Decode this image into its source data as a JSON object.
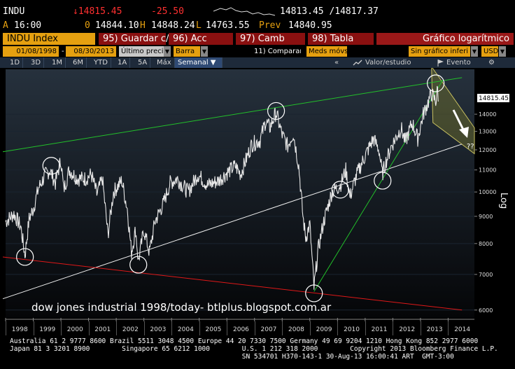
{
  "quote": {
    "ticker": "INDU",
    "last": "↓14815.45",
    "change": "-25.50",
    "bid_ask": "14813.45 /14817.37",
    "time_label": "A",
    "time": "16:00",
    "open_label": "0",
    "open": "14844.10",
    "high_label": "H",
    "high": "14848.24",
    "low_label": "L",
    "low": "14763.55",
    "prev_label": "Prev",
    "prev": "14840.95"
  },
  "function_bar": {
    "ticker_field": "INDU Index",
    "buttons": [
      "95) Guardar c/",
      "96) Acc",
      "97) Camb",
      "98) Tabla"
    ],
    "title": "Gráfico logarítmico"
  },
  "control_bar": {
    "start_date": "01/08/1998",
    "end_date": "08/30/2013",
    "price_field": "Último preci",
    "chart_type": "Barra",
    "compare": "11) Comparar",
    "moving_avg": "Meds móvs",
    "event_field": "Sin gráfico inferi",
    "currency": "USD"
  },
  "period_tabs": {
    "tabs": [
      "1D",
      "3D",
      "1M",
      "6M",
      "YTD",
      "1A",
      "5A",
      "Máx"
    ],
    "active": "Semanal ▼",
    "collapse": "«",
    "value_study": "Valor/estudio",
    "event": "Evento",
    "settings": "⚙"
  },
  "chart_data": {
    "type": "line",
    "title": "",
    "xlabel": "",
    "ylabel": "Log",
    "scale": "log",
    "x_ticks": [
      "1998",
      "1999",
      "2000",
      "2001",
      "2002",
      "2003",
      "2004",
      "2005",
      "2006",
      "2007",
      "2008",
      "2009",
      "2010",
      "2011",
      "2012",
      "2013",
      "2014"
    ],
    "y_ticks": [
      6000,
      7000,
      8000,
      9000,
      10000,
      11000,
      12000,
      13000,
      14000
    ],
    "ylim": [
      5800,
      17000
    ],
    "last_value_label": "14815.45",
    "question_marks": "??",
    "series": [
      {
        "values": [
          [
            1998.0,
            8800
          ],
          [
            1998.3,
            9100
          ],
          [
            1998.55,
            8600
          ],
          [
            1998.7,
            7600
          ],
          [
            1998.85,
            8900
          ],
          [
            1999.0,
            9300
          ],
          [
            1999.2,
            10200
          ],
          [
            1999.45,
            10800
          ],
          [
            1999.6,
            11000
          ],
          [
            1999.8,
            10400
          ],
          [
            2000.0,
            11500
          ],
          [
            2000.1,
            10100
          ],
          [
            2000.3,
            11000
          ],
          [
            2000.6,
            10600
          ],
          [
            2000.9,
            10600
          ],
          [
            2001.1,
            10800
          ],
          [
            2001.3,
            9900
          ],
          [
            2001.5,
            10600
          ],
          [
            2001.7,
            8300
          ],
          [
            2001.9,
            10000
          ],
          [
            2002.2,
            10500
          ],
          [
            2002.4,
            9300
          ],
          [
            2002.55,
            7700
          ],
          [
            2002.7,
            8500
          ],
          [
            2002.8,
            7400
          ],
          [
            2003.0,
            8500
          ],
          [
            2003.2,
            7700
          ],
          [
            2003.4,
            8800
          ],
          [
            2003.7,
            9500
          ],
          [
            2003.95,
            10400
          ],
          [
            2004.2,
            10600
          ],
          [
            2004.6,
            10000
          ],
          [
            2004.95,
            10800
          ],
          [
            2005.3,
            10300
          ],
          [
            2005.7,
            10500
          ],
          [
            2005.95,
            10800
          ],
          [
            2006.3,
            11200
          ],
          [
            2006.5,
            10800
          ],
          [
            2006.9,
            12300
          ],
          [
            2007.2,
            12500
          ],
          [
            2007.4,
            13600
          ],
          [
            2007.55,
            13200
          ],
          [
            2007.78,
            14100
          ],
          [
            2008.0,
            12800
          ],
          [
            2008.2,
            12200
          ],
          [
            2008.4,
            12900
          ],
          [
            2008.6,
            11200
          ],
          [
            2008.75,
            9000
          ],
          [
            2008.85,
            8200
          ],
          [
            2009.0,
            8700
          ],
          [
            2009.15,
            6600
          ],
          [
            2009.3,
            7800
          ],
          [
            2009.5,
            8800
          ],
          [
            2009.8,
            10000
          ],
          [
            2010.1,
            10300
          ],
          [
            2010.3,
            11000
          ],
          [
            2010.45,
            9800
          ],
          [
            2010.7,
            10800
          ],
          [
            2011.0,
            11700
          ],
          [
            2011.3,
            12600
          ],
          [
            2011.5,
            12000
          ],
          [
            2011.62,
            10800
          ],
          [
            2011.75,
            11400
          ],
          [
            2011.95,
            12200
          ],
          [
            2012.3,
            13200
          ],
          [
            2012.45,
            12400
          ],
          [
            2012.7,
            13500
          ],
          [
            2012.9,
            12600
          ],
          [
            2013.1,
            14000
          ],
          [
            2013.4,
            15300
          ],
          [
            2013.55,
            14800
          ],
          [
            2013.62,
            15600
          ],
          [
            2013.66,
            14815
          ]
        ]
      }
    ],
    "trendlines": [
      {
        "color": "#22c02a",
        "from": [
          1997.9,
          11900
        ],
        "to": [
          2014.5,
          16400
        ]
      },
      {
        "color": "#f0f0f0",
        "from": [
          1997.9,
          6300
        ],
        "to": [
          2014.5,
          12300
        ]
      },
      {
        "color": "#e01818",
        "from": [
          1997.9,
          7550
        ],
        "to": [
          2014.5,
          6000
        ]
      },
      {
        "color": "#22c02a",
        "from": [
          2009.15,
          6500
        ],
        "to": [
          2013.8,
          16200
        ]
      }
    ],
    "circles": [
      [
        1998.7,
        7550
      ],
      [
        1999.65,
        11200
      ],
      [
        2002.8,
        7300
      ],
      [
        2007.78,
        14200
      ],
      [
        2009.15,
        6450
      ],
      [
        2010.1,
        10100
      ],
      [
        2011.63,
        10500
      ],
      [
        2013.55,
        16000
      ]
    ],
    "channel_color": "#c8c060"
  },
  "overlay_text": "dow jones industrial 1998/today- btlplus.blogspot.com.ar",
  "footer": {
    "line1": "Australia 61 2 9777 8600 Brazil 5511 3048 4500 Europe 44 20 7330 7500 Germany 49 69 9204 1210 Hong Kong 852 2977 6000",
    "line2": "Japan 81 3 3201 8900        Singapore 65 6212 1000        U.S. 1 212 318 2000        Copyright 2013 Bloomberg Finance L.P.",
    "line3": "                                                          SN 534701 H370-143-1 30-Aug-13 16:00:41 ART  GMT-3:00"
  }
}
